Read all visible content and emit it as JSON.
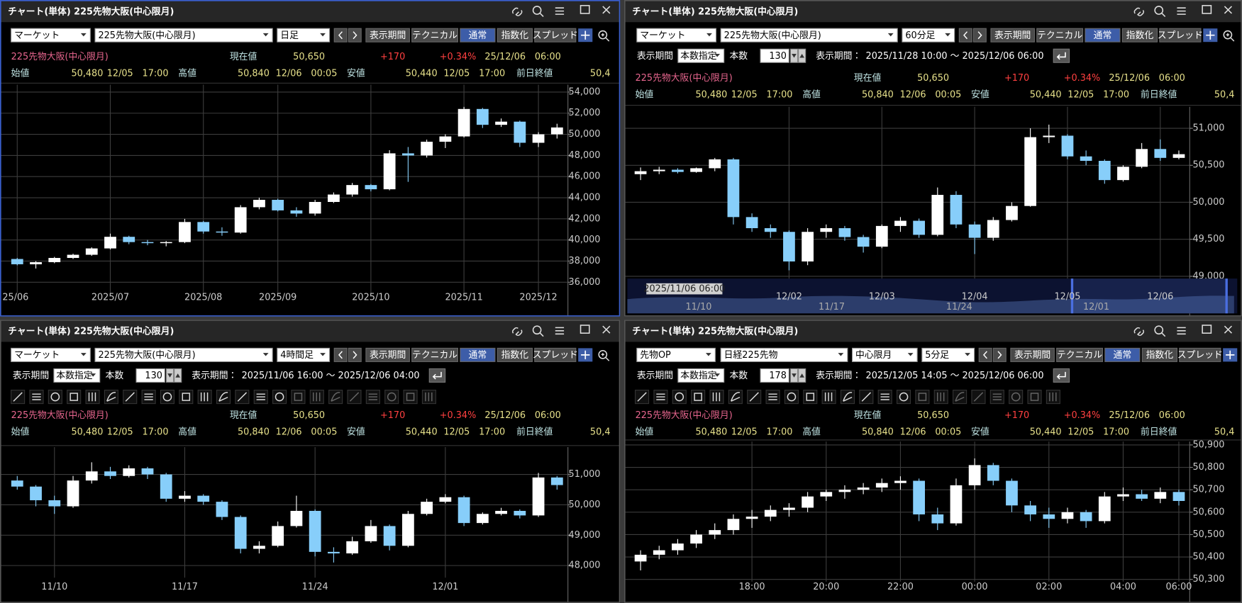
{
  "windows": [
    {
      "title": "チャート(単体) 225先物大阪(中心限月)",
      "active": true,
      "tools": false,
      "selects": [
        "マーケット",
        "225先物大阪(中心限月)",
        "日足"
      ],
      "buttons": [
        "表示期間",
        "テクニカル",
        "通常",
        "指数化",
        "スプレッド"
      ]
    },
    {
      "title": "チャート(単体) 225先物大阪(中心限月)",
      "active": false,
      "tools": false,
      "selects": [
        "マーケット",
        "225先物大阪(中心限月)",
        "60分足"
      ],
      "buttons": [
        "表示期間",
        "テクニカル",
        "通常",
        "指数化",
        "スプレッド"
      ],
      "period": {
        "label": "表示期間",
        "mode": "本数指定",
        "count_label": "本数",
        "count": 130,
        "range_label": "表示期間：",
        "range": "2025/11/28 10:00 ～ 2025/12/06 06:00"
      },
      "navigator": {
        "date": "2025/11/06 06:00",
        "labels": [
          "11/10",
          "11/17",
          "11/24",
          "12/01"
        ]
      }
    },
    {
      "title": "チャート(単体) 225先物大阪(中心限月)",
      "active": false,
      "tools": true,
      "selects": [
        "マーケット",
        "225先物大阪(中心限月)",
        "4時間足"
      ],
      "buttons": [
        "表示期間",
        "テクニカル",
        "通常",
        "指数化",
        "スプレッド"
      ],
      "period": {
        "label": "表示期間",
        "mode": "本数指定",
        "count_label": "本数",
        "count": 130,
        "range_label": "表示期間：",
        "range": "2025/11/06 16:00 ～ 2025/12/06 04:00"
      }
    },
    {
      "title": "チャート(単体) 225先物大阪(中心限月)",
      "active": false,
      "tools": true,
      "selects": [
        "先物OP",
        "日経225先物",
        "中心限月",
        "5分足"
      ],
      "buttons": [
        "表示期間",
        "テクニカル",
        "通常",
        "指数化",
        "スプレッド"
      ],
      "period": {
        "label": "表示期間",
        "mode": "本数指定",
        "count_label": "本数",
        "count": 178,
        "range_label": "表示期間：",
        "range": "2025/12/05 14:05 ～ 2025/12/06 06:00"
      }
    }
  ],
  "quote": {
    "name": "225先物大阪(中心限月)",
    "current_label": "現在値",
    "current": "50,650",
    "change": "+170",
    "change_pct": "+0.34%",
    "time": "25/12/06　06:00",
    "open_label": "始値",
    "open": "50,480",
    "open_time": "12/05　17:00",
    "high_label": "高値",
    "high": "50,840",
    "high_time": "12/06　00:05",
    "low_label": "安値",
    "low": "50,440",
    "low_time": "12/05　17:00",
    "prev_label": "前日終値",
    "prev": "50,4"
  },
  "chart_data": [
    {
      "type": "candlestick",
      "up_color": "#ffffff",
      "down_color": "#87cefa",
      "grid": true,
      "categories": [
        "25/06",
        null,
        null,
        null,
        null,
        "2025/07",
        null,
        null,
        null,
        null,
        "2025/08",
        null,
        null,
        null,
        "2025/09",
        null,
        null,
        null,
        null,
        "2025/10",
        null,
        null,
        null,
        null,
        "2025/11",
        null,
        null,
        null,
        "2025/12",
        null
      ],
      "ohlc": [
        [
          38200,
          38300,
          37600,
          37700
        ],
        [
          37700,
          38000,
          37300,
          37900
        ],
        [
          37900,
          38400,
          37800,
          38300
        ],
        [
          38300,
          38700,
          38200,
          38600
        ],
        [
          38600,
          39300,
          38500,
          39200
        ],
        [
          39200,
          40600,
          39100,
          40300
        ],
        [
          40300,
          40400,
          39600,
          39800
        ],
        [
          39800,
          40000,
          39500,
          39700
        ],
        [
          39700,
          39900,
          39400,
          39800
        ],
        [
          39800,
          42000,
          39700,
          41700
        ],
        [
          41700,
          41800,
          40600,
          40800
        ],
        [
          40800,
          41200,
          40400,
          40700
        ],
        [
          40700,
          43300,
          40600,
          43100
        ],
        [
          43100,
          44000,
          42900,
          43800
        ],
        [
          43800,
          43900,
          42700,
          42800
        ],
        [
          42800,
          43100,
          42200,
          42500
        ],
        [
          42500,
          43800,
          42300,
          43600
        ],
        [
          43600,
          44500,
          43500,
          44300
        ],
        [
          44300,
          45400,
          44100,
          45200
        ],
        [
          45200,
          45300,
          44600,
          44800
        ],
        [
          44800,
          48500,
          44700,
          48200
        ],
        [
          48200,
          48800,
          45500,
          48000
        ],
        [
          48000,
          49500,
          47800,
          49300
        ],
        [
          49300,
          50000,
          48700,
          49800
        ],
        [
          49800,
          52600,
          49700,
          52400
        ],
        [
          52400,
          52500,
          50600,
          50900
        ],
        [
          50900,
          51500,
          50700,
          51200
        ],
        [
          51200,
          51300,
          48800,
          49200
        ],
        [
          49200,
          50200,
          48800,
          50000
        ],
        [
          50000,
          51000,
          49600,
          50650
        ]
      ],
      "ylim": [
        35000,
        54700
      ],
      "yticks": [
        {
          "value": 36000,
          "label": "36,000"
        },
        {
          "value": 38000,
          "label": "38,000"
        },
        {
          "value": 40000,
          "label": "40,000"
        },
        {
          "value": 42000,
          "label": "42,000"
        },
        {
          "value": 44000,
          "label": "44,000"
        },
        {
          "value": 46000,
          "label": "46,000"
        },
        {
          "value": 48000,
          "label": "48,000"
        },
        {
          "value": 50000,
          "label": "50,000"
        },
        {
          "value": 52000,
          "label": "52,000"
        },
        {
          "value": 54000,
          "label": "54,000"
        }
      ]
    },
    {
      "type": "candlestick",
      "up_color": "#ffffff",
      "down_color": "#87cefa",
      "grid": true,
      "categories": [
        null,
        null,
        null,
        null,
        null,
        null,
        null,
        null,
        "12/02",
        null,
        null,
        null,
        null,
        "12/03",
        null,
        null,
        null,
        null,
        "12/04",
        null,
        null,
        null,
        null,
        "12/05",
        null,
        null,
        null,
        null,
        "12/06",
        null
      ],
      "ohlc": [
        [
          50380,
          50470,
          50300,
          50420
        ],
        [
          50420,
          50480,
          50380,
          50440
        ],
        [
          50440,
          50460,
          50390,
          50410
        ],
        [
          50410,
          50470,
          50400,
          50460
        ],
        [
          50460,
          50600,
          50420,
          50580
        ],
        [
          50580,
          50600,
          49700,
          49800
        ],
        [
          49800,
          49850,
          49600,
          49650
        ],
        [
          49650,
          49700,
          49520,
          49600
        ],
        [
          49600,
          49620,
          49080,
          49200
        ],
        [
          49200,
          49650,
          49150,
          49600
        ],
        [
          49600,
          49700,
          49520,
          49650
        ],
        [
          49650,
          49680,
          49480,
          49530
        ],
        [
          49530,
          49560,
          49320,
          49400
        ],
        [
          49400,
          49700,
          49380,
          49680
        ],
        [
          49680,
          49800,
          49600,
          49750
        ],
        [
          49750,
          49780,
          49520,
          49560
        ],
        [
          49560,
          50200,
          49540,
          50100
        ],
        [
          50100,
          50150,
          49650,
          49700
        ],
        [
          49700,
          49740,
          49300,
          49520
        ],
        [
          49520,
          49800,
          49480,
          49760
        ],
        [
          49760,
          50000,
          49740,
          49950
        ],
        [
          49950,
          51000,
          49940,
          50880
        ],
        [
          50880,
          51050,
          50800,
          50900
        ],
        [
          50900,
          50920,
          50580,
          50620
        ],
        [
          50620,
          50700,
          50500,
          50560
        ],
        [
          50560,
          50580,
          50250,
          50300
        ],
        [
          50300,
          50500,
          50280,
          50480
        ],
        [
          50480,
          50800,
          50460,
          50720
        ],
        [
          50720,
          50850,
          50560,
          50600
        ],
        [
          50600,
          50700,
          50580,
          50650
        ]
      ],
      "ylim": [
        48830,
        51290
      ],
      "yticks": [
        {
          "value": 49000,
          "label": "49,000"
        },
        {
          "value": 49500,
          "label": "49,500"
        },
        {
          "value": 50000,
          "label": "50,000"
        },
        {
          "value": 50500,
          "label": "50,500"
        },
        {
          "value": 51000,
          "label": "51,000"
        }
      ]
    },
    {
      "type": "candlestick",
      "up_color": "#ffffff",
      "down_color": "#87cefa",
      "grid": true,
      "categories": [
        null,
        null,
        "11/10",
        null,
        null,
        null,
        null,
        null,
        null,
        "11/17",
        null,
        null,
        null,
        null,
        null,
        null,
        "11/24",
        null,
        null,
        null,
        null,
        null,
        null,
        "12/01",
        null,
        null,
        null,
        null,
        null,
        null
      ],
      "ohlc": [
        [
          50800,
          50950,
          50500,
          50600
        ],
        [
          50600,
          50650,
          49950,
          50150
        ],
        [
          50150,
          50300,
          49700,
          49950
        ],
        [
          49950,
          50950,
          49900,
          50800
        ],
        [
          50800,
          51400,
          50700,
          51100
        ],
        [
          51100,
          51250,
          50850,
          50950
        ],
        [
          50950,
          51300,
          50900,
          51200
        ],
        [
          51200,
          51250,
          50850,
          51000
        ],
        [
          51000,
          51050,
          50100,
          50200
        ],
        [
          50200,
          50450,
          50100,
          50300
        ],
        [
          50300,
          50350,
          50000,
          50100
        ],
        [
          50100,
          50150,
          49500,
          49600
        ],
        [
          49600,
          49650,
          48400,
          48550
        ],
        [
          48550,
          48800,
          48400,
          48650
        ],
        [
          48650,
          49450,
          48600,
          49300
        ],
        [
          49300,
          50300,
          49250,
          49800
        ],
        [
          49800,
          49850,
          48300,
          48450
        ],
        [
          48450,
          48600,
          48100,
          48400
        ],
        [
          48400,
          48950,
          48350,
          48800
        ],
        [
          48800,
          49500,
          48750,
          49300
        ],
        [
          49300,
          49350,
          48500,
          48650
        ],
        [
          48650,
          49800,
          48600,
          49700
        ],
        [
          49700,
          50200,
          49650,
          50100
        ],
        [
          50100,
          50350,
          50050,
          50250
        ],
        [
          50250,
          50300,
          49300,
          49400
        ],
        [
          49400,
          49750,
          49350,
          49700
        ],
        [
          49700,
          49900,
          49650,
          49800
        ],
        [
          49800,
          49850,
          49550,
          49650
        ],
        [
          49650,
          51050,
          49600,
          50900
        ],
        [
          50900,
          50950,
          50500,
          50650
        ]
      ],
      "ylim": [
        47600,
        51900
      ],
      "yticks": [
        {
          "value": 48000,
          "label": "48,000"
        },
        {
          "value": 49000,
          "label": "49,000"
        },
        {
          "value": 50000,
          "label": "50,000"
        },
        {
          "value": 51000,
          "label": "51,000"
        }
      ]
    },
    {
      "type": "candlestick",
      "up_color": "#ffffff",
      "down_color": "#87cefa",
      "grid": true,
      "categories": [
        null,
        null,
        null,
        null,
        null,
        null,
        "18:00",
        null,
        null,
        null,
        "20:00",
        null,
        null,
        null,
        "22:00",
        null,
        null,
        null,
        "00:00",
        null,
        null,
        null,
        "02:00",
        null,
        null,
        null,
        "04:00",
        null,
        null,
        "06:00"
      ],
      "ohlc": [
        [
          50380,
          50430,
          50340,
          50410
        ],
        [
          50410,
          50450,
          50390,
          50430
        ],
        [
          50430,
          50480,
          50410,
          50460
        ],
        [
          50460,
          50520,
          50440,
          50500
        ],
        [
          50500,
          50550,
          50480,
          50520
        ],
        [
          50520,
          50590,
          50500,
          50570
        ],
        [
          50570,
          50610,
          50530,
          50580
        ],
        [
          50580,
          50630,
          50560,
          50610
        ],
        [
          50610,
          50640,
          50580,
          50620
        ],
        [
          50620,
          50690,
          50600,
          50670
        ],
        [
          50670,
          50700,
          50650,
          50690
        ],
        [
          50690,
          50720,
          50660,
          50700
        ],
        [
          50700,
          50730,
          50680,
          50710
        ],
        [
          50710,
          50750,
          50690,
          50730
        ],
        [
          50730,
          50760,
          50700,
          50740
        ],
        [
          50740,
          50750,
          50560,
          50590
        ],
        [
          50590,
          50620,
          50520,
          50550
        ],
        [
          50550,
          50750,
          50540,
          50720
        ],
        [
          50720,
          50840,
          50700,
          50810
        ],
        [
          50810,
          50820,
          50720,
          50740
        ],
        [
          50740,
          50750,
          50600,
          50630
        ],
        [
          50630,
          50650,
          50560,
          50590
        ],
        [
          50590,
          50620,
          50530,
          50570
        ],
        [
          50570,
          50620,
          50550,
          50600
        ],
        [
          50600,
          50610,
          50530,
          50560
        ],
        [
          50560,
          50690,
          50550,
          50670
        ],
        [
          50670,
          50710,
          50650,
          50680
        ],
        [
          50680,
          50700,
          50650,
          50660
        ],
        [
          50660,
          50710,
          50640,
          50690
        ],
        [
          50690,
          50700,
          50630,
          50650
        ]
      ],
      "ylim": [
        50290,
        50915
      ],
      "yticks": [
        {
          "value": 50300,
          "label": "50,300"
        },
        {
          "value": 50400,
          "label": "50,400"
        },
        {
          "value": 50500,
          "label": "50,500"
        },
        {
          "value": 50600,
          "label": "50,600"
        },
        {
          "value": 50700,
          "label": "50,700"
        },
        {
          "value": 50800,
          "label": "50,800"
        },
        {
          "value": 50900,
          "label": "50,900"
        }
      ]
    }
  ]
}
